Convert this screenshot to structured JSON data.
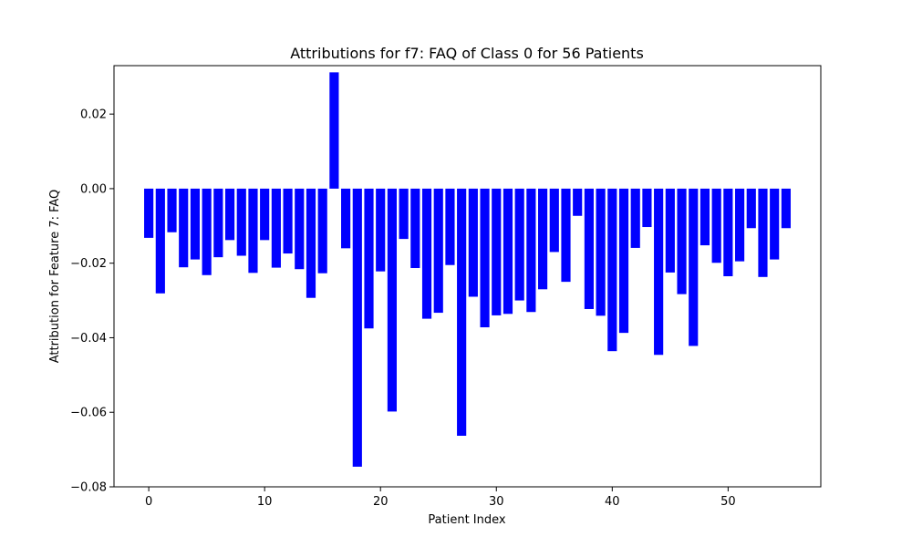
{
  "chart_data": {
    "type": "bar",
    "title": "Attributions for f7: FAQ of Class 0 for 56 Patients",
    "xlabel": "Patient Index",
    "ylabel": "Attribution for Feature 7: FAQ",
    "bar_color": "#0000ff",
    "xlim": [
      -3,
      58
    ],
    "ylim": [
      -0.08,
      0.033
    ],
    "xticks": [
      0,
      10,
      20,
      30,
      40,
      50
    ],
    "xtick_labels": [
      "0",
      "10",
      "20",
      "30",
      "40",
      "50"
    ],
    "yticks": [
      -0.08,
      -0.06,
      -0.04,
      -0.02,
      0.0,
      0.02
    ],
    "ytick_labels": [
      "−0.08",
      "−0.06",
      "−0.04",
      "−0.02",
      "0.00",
      "0.02"
    ],
    "grid": false,
    "x": [
      0,
      1,
      2,
      3,
      4,
      5,
      6,
      7,
      8,
      9,
      10,
      11,
      12,
      13,
      14,
      15,
      16,
      17,
      18,
      19,
      20,
      21,
      22,
      23,
      24,
      25,
      26,
      27,
      28,
      29,
      30,
      31,
      32,
      33,
      34,
      35,
      36,
      37,
      38,
      39,
      40,
      41,
      42,
      43,
      44,
      45,
      46,
      47,
      48,
      49,
      50,
      51,
      52,
      53,
      54,
      55
    ],
    "values": [
      -0.0132,
      -0.0281,
      -0.0117,
      -0.0211,
      -0.019,
      -0.0232,
      -0.0184,
      -0.0138,
      -0.018,
      -0.0226,
      -0.0138,
      -0.0212,
      -0.0174,
      -0.0216,
      -0.0293,
      -0.0227,
      0.0312,
      -0.016,
      -0.0746,
      -0.0375,
      -0.0222,
      -0.0598,
      -0.0135,
      -0.0213,
      -0.0349,
      -0.0333,
      -0.0205,
      -0.0663,
      -0.029,
      -0.0372,
      -0.034,
      -0.0336,
      -0.03,
      -0.0331,
      -0.027,
      -0.017,
      -0.025,
      -0.0073,
      -0.0323,
      -0.0341,
      -0.0436,
      -0.0387,
      -0.0159,
      -0.0103,
      -0.0446,
      -0.0225,
      -0.0283,
      -0.0422,
      -0.0152,
      -0.0199,
      -0.0235,
      -0.0195,
      -0.0106,
      -0.0237,
      -0.019,
      -0.0106
    ]
  }
}
